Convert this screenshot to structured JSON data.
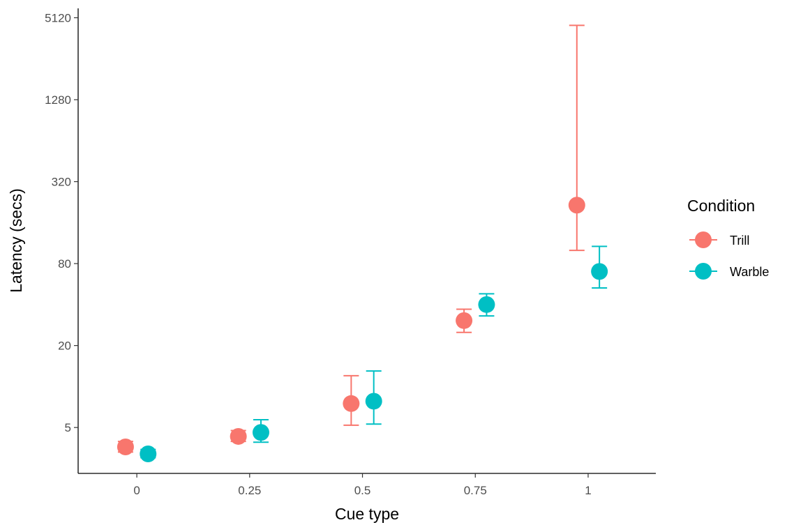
{
  "chart_data": {
    "type": "scatter",
    "xlabel": "Cue type",
    "ylabel": "Latency (secs)",
    "y_scale": "log2",
    "ylim": [
      2.3,
      6000
    ],
    "xlim": [
      -0.13,
      1.15
    ],
    "x_tick_labels": [
      "0",
      "0.25",
      "0.5",
      "0.75",
      "1"
    ],
    "x_ticks": [
      0,
      0.25,
      0.5,
      0.75,
      1
    ],
    "y_tick_labels": [
      "5",
      "20",
      "80",
      "320",
      "1280",
      "5120"
    ],
    "y_ticks": [
      5,
      20,
      80,
      320,
      1280,
      5120
    ],
    "grid": false,
    "legend": {
      "title": "Condition",
      "position": "right",
      "entries": [
        {
          "label": "Trill",
          "color": "#F8766D"
        },
        {
          "label": "Warble",
          "color": "#00BFC4"
        }
      ]
    },
    "series": [
      {
        "name": "Trill",
        "color": "#F8766D",
        "x": [
          0,
          0.25,
          0.5,
          0.75,
          1
        ],
        "y": [
          3.6,
          4.3,
          7.5,
          30.5,
          215
        ],
        "ymin": [
          3.3,
          3.95,
          5.2,
          25,
          100
        ],
        "ymax": [
          3.95,
          4.75,
          12,
          37,
          4500
        ]
      },
      {
        "name": "Warble",
        "color": "#00BFC4",
        "x": [
          0,
          0.25,
          0.5,
          0.75,
          1
        ],
        "y": [
          3.2,
          4.6,
          7.8,
          40,
          70
        ],
        "ymin": [
          3.0,
          3.9,
          5.3,
          33,
          53
        ],
        "ymax": [
          3.45,
          5.7,
          13,
          48,
          107
        ]
      }
    ]
  }
}
